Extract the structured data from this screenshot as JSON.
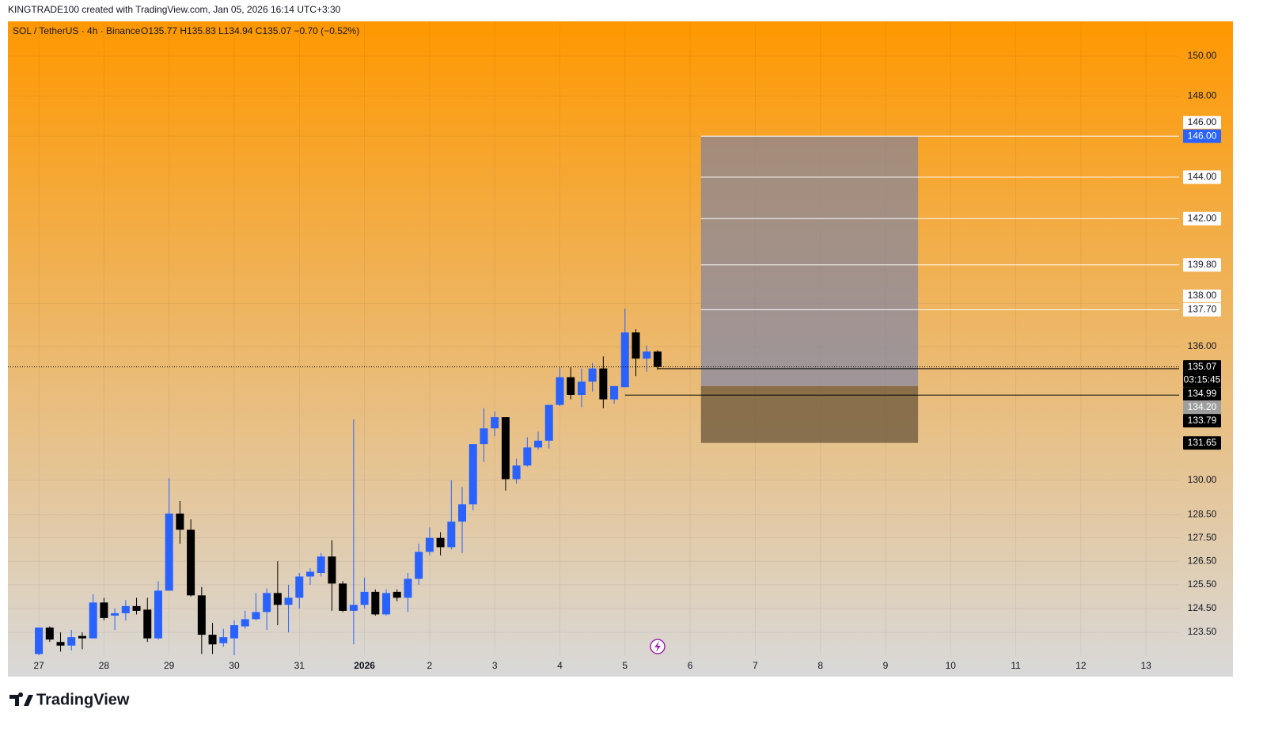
{
  "header": "KINGTRADE100 created with TradingView.com, Jan 05, 2026 16:14 UTC+3:30",
  "footer": "TradingView",
  "chart_data": {
    "type": "candlestick",
    "title": "SOL / TetherUS · 4h · Binance",
    "legend_text": "O135.77 H135.83 L134.94 C135.07 −0.70 (−0.52%)",
    "up_color": "#2962ff",
    "down_color": "#000000",
    "log_scale": true,
    "grid": true,
    "x": [
      0,
      4,
      8,
      12,
      16,
      20,
      24,
      28,
      32,
      36,
      40,
      44,
      48,
      52,
      56,
      60,
      64,
      68,
      72,
      76,
      80,
      84,
      88,
      92,
      96,
      100,
      104,
      108,
      112,
      116,
      120,
      124,
      128,
      132,
      136,
      140,
      144,
      148,
      152,
      156,
      160,
      164,
      168,
      172,
      176,
      180,
      184,
      188,
      192,
      196,
      200,
      204,
      208,
      212,
      216,
      220,
      224,
      228
    ],
    "open": [
      122.6,
      123.7,
      123.1,
      122.95,
      123.35,
      123.25,
      124.75,
      124.2,
      124.3,
      124.6,
      124.45,
      123.25,
      125.25,
      128.55,
      127.85,
      125.05,
      123.4,
      123.05,
      123.25,
      123.75,
      124.05,
      124.35,
      125.15,
      124.65,
      124.95,
      125.85,
      126.0,
      126.7,
      125.55,
      124.4,
      124.65,
      125.2,
      124.25,
      125.2,
      124.95,
      125.75,
      126.9,
      127.5,
      127.1,
      128.2,
      128.95,
      131.6,
      132.3,
      132.8,
      130.05,
      130.65,
      131.45,
      131.75,
      133.35,
      134.6,
      133.8,
      134.4,
      135.0,
      133.6,
      134.15,
      136.65,
      135.45,
      135.77
    ],
    "high": [
      123.7,
      123.75,
      123.5,
      123.6,
      123.5,
      125.1,
      124.95,
      124.5,
      124.85,
      124.95,
      124.95,
      125.65,
      130.1,
      129.1,
      128.3,
      125.4,
      123.9,
      123.65,
      124.0,
      124.4,
      125.15,
      125.35,
      126.5,
      125.5,
      126.0,
      126.2,
      126.85,
      127.4,
      125.65,
      132.7,
      125.8,
      125.3,
      125.3,
      125.3,
      126.0,
      127.25,
      127.95,
      127.75,
      130.0,
      129.7,
      131.6,
      133.2,
      133.05,
      132.8,
      130.95,
      131.9,
      132.15,
      133.35,
      135.05,
      135.05,
      135.0,
      135.25,
      135.55,
      134.2,
      137.75,
      136.8,
      136.05,
      135.83
    ],
    "low": [
      122.5,
      123.1,
      122.7,
      122.75,
      122.8,
      123.25,
      124.0,
      123.6,
      124.0,
      124.25,
      123.1,
      123.2,
      125.25,
      127.25,
      125.0,
      122.6,
      122.6,
      122.9,
      122.55,
      123.65,
      124.0,
      123.6,
      123.8,
      123.5,
      124.5,
      125.5,
      125.85,
      124.4,
      124.35,
      123.0,
      124.5,
      124.2,
      124.2,
      124.8,
      124.35,
      125.5,
      126.75,
      126.75,
      127.0,
      126.85,
      128.7,
      130.8,
      131.95,
      129.55,
      129.85,
      130.6,
      131.35,
      131.4,
      133.3,
      133.6,
      133.25,
      133.95,
      133.2,
      133.4,
      134.15,
      134.65,
      134.85,
      134.94
    ],
    "close": [
      123.7,
      123.2,
      122.95,
      123.3,
      123.25,
      124.75,
      124.1,
      124.3,
      124.6,
      124.4,
      123.25,
      125.25,
      128.55,
      127.85,
      125.05,
      123.4,
      123.0,
      123.3,
      123.8,
      124.05,
      124.35,
      125.15,
      124.65,
      124.95,
      125.85,
      126.05,
      126.7,
      125.55,
      124.4,
      124.65,
      125.2,
      124.25,
      125.15,
      124.95,
      125.75,
      126.9,
      127.5,
      127.1,
      128.2,
      128.95,
      131.6,
      132.3,
      132.8,
      130.05,
      130.65,
      131.45,
      131.75,
      133.35,
      134.6,
      133.8,
      134.4,
      135.0,
      133.6,
      134.2,
      136.65,
      135.45,
      135.77,
      135.07
    ],
    "xlim": [
      -11.4,
      420.2
    ],
    "ylim": [
      122.55,
      151.77
    ],
    "xticks": [
      {
        "value": 0,
        "label": "27"
      },
      {
        "value": 24,
        "label": "28"
      },
      {
        "value": 48,
        "label": "29"
      },
      {
        "value": 72,
        "label": "30"
      },
      {
        "value": 96,
        "label": "31"
      },
      {
        "value": 120,
        "label": "2026",
        "bold": true
      },
      {
        "value": 144,
        "label": "2"
      },
      {
        "value": 168,
        "label": "3"
      },
      {
        "value": 192,
        "label": "4"
      },
      {
        "value": 216,
        "label": "5"
      },
      {
        "value": 240,
        "label": "6"
      },
      {
        "value": 264,
        "label": "7"
      },
      {
        "value": 288,
        "label": "8"
      },
      {
        "value": 312,
        "label": "9"
      },
      {
        "value": 336,
        "label": "10"
      },
      {
        "value": 360,
        "label": "11"
      },
      {
        "value": 384,
        "label": "12"
      },
      {
        "value": 408,
        "label": "13"
      }
    ],
    "yticks": [
      {
        "value": 150,
        "label": "150.00"
      },
      {
        "value": 148,
        "label": "148.00"
      },
      {
        "value": 146,
        "label": "146.00"
      },
      {
        "value": 138,
        "label": "138.00"
      },
      {
        "value": 136,
        "label": "136.00"
      },
      {
        "value": 130,
        "label": "130.00"
      },
      {
        "value": 128.5,
        "label": "128.50"
      },
      {
        "value": 127.5,
        "label": "127.50"
      },
      {
        "value": 126.5,
        "label": "126.50"
      },
      {
        "value": 125.5,
        "label": "125.50"
      },
      {
        "value": 124.5,
        "label": "124.50"
      },
      {
        "value": 123.5,
        "label": "123.50"
      }
    ],
    "position": {
      "from": 244,
      "to": 324,
      "target": 146,
      "entry": 134.2,
      "stop": 131.65,
      "profit_color": "rgba(110,125,177,0.6)",
      "loss_color": "rgba(73,58,40,0.6)"
    },
    "price_labels": [
      {
        "value": 146,
        "label": "146.00",
        "bg": "#2962ff",
        "fg": "#ffffff",
        "line": "#ffffff",
        "from": 244
      },
      {
        "value": 144,
        "label": "144.00",
        "bg": "#ffffff",
        "fg": "#131722",
        "line": "#ffffff",
        "from": 244
      },
      {
        "value": 142,
        "label": "142.00",
        "bg": "#ffffff",
        "fg": "#131722",
        "line": "#ffffff",
        "from": 244
      },
      {
        "value": 139.8,
        "label": "139.80",
        "bg": "#ffffff",
        "fg": "#131722",
        "line": "#ffffff",
        "from": 244
      },
      {
        "value": 137.7,
        "label": "137.70",
        "bg": "#ffffff",
        "fg": "#131722",
        "line": "#ffffff",
        "from": 244
      },
      {
        "value": 135.07,
        "label": "135.07",
        "sub": "03:15:45",
        "bg": "#000000",
        "fg": "#ffffff",
        "line": "#000000",
        "dash": true
      },
      {
        "value": 134.99,
        "label": "134.99",
        "bg": "#000000",
        "fg": "#ffffff",
        "line": "#000000",
        "from": 228
      },
      {
        "value": 134.2,
        "label": "134.20",
        "bg": "#9e9e9e",
        "fg": "#ffffff"
      },
      {
        "value": 133.79,
        "label": "133.79",
        "bg": "#000000",
        "fg": "#ffffff",
        "line": "#000000",
        "from": 216
      },
      {
        "value": 131.65,
        "label": "131.65",
        "bg": "#000000",
        "fg": "#ffffff"
      }
    ]
  }
}
